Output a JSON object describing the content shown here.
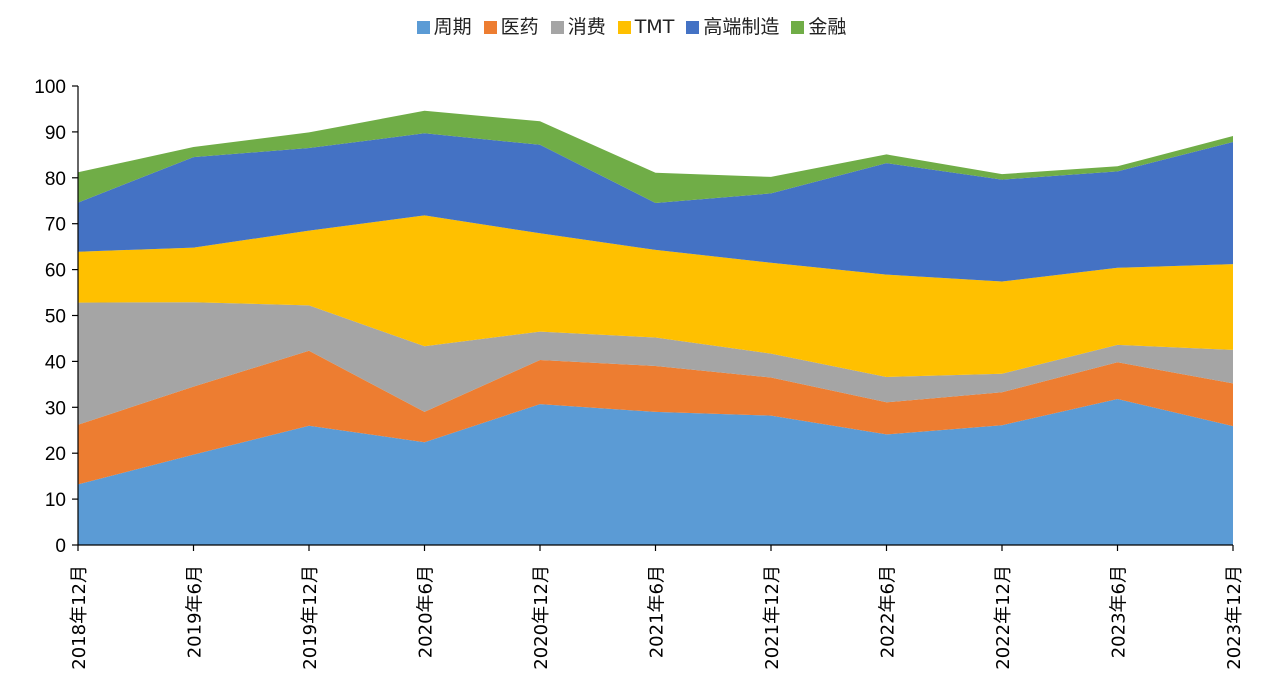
{
  "chart_data": {
    "type": "area",
    "stacked": true,
    "title": "",
    "xlabel": "",
    "ylabel": "",
    "ylim": [
      0,
      100
    ],
    "yticks": [
      0,
      10,
      20,
      30,
      40,
      50,
      60,
      70,
      80,
      90,
      100
    ],
    "grid": false,
    "legend_position": "top-center",
    "categories": [
      "2018年12月",
      "2019年6月",
      "2019年12月",
      "2020年6月",
      "2020年12月",
      "2021年6月",
      "2021年12月",
      "2022年6月",
      "2022年12月",
      "2023年6月",
      "2023年12月"
    ],
    "series": [
      {
        "name": "周期",
        "color": "#5B9BD5",
        "values": [
          13.2,
          19.7,
          26.0,
          22.4,
          30.7,
          29.0,
          28.2,
          24.1,
          26.1,
          31.8,
          25.9
        ]
      },
      {
        "name": "医药",
        "color": "#ED7D31",
        "values": [
          13.0,
          14.8,
          16.3,
          6.6,
          9.6,
          10.0,
          8.3,
          7.0,
          7.2,
          8.0,
          9.3
        ]
      },
      {
        "name": "消费",
        "color": "#A5A5A5",
        "values": [
          26.6,
          18.4,
          9.9,
          14.3,
          6.2,
          6.2,
          5.2,
          5.5,
          4.0,
          3.8,
          7.3
        ]
      },
      {
        "name": "TMT",
        "color": "#FFC000",
        "values": [
          11.1,
          11.9,
          16.3,
          28.5,
          21.4,
          19.1,
          19.8,
          22.3,
          20.1,
          16.8,
          18.7
        ]
      },
      {
        "name": "高端制造",
        "color": "#4472C4",
        "values": [
          10.7,
          19.7,
          18.0,
          17.9,
          19.3,
          10.2,
          15.1,
          24.3,
          22.2,
          21.0,
          26.6
        ]
      },
      {
        "name": "金融",
        "color": "#70AD47",
        "values": [
          6.6,
          2.2,
          3.4,
          4.9,
          5.1,
          6.6,
          3.6,
          1.9,
          1.2,
          1.1,
          1.3
        ]
      }
    ]
  }
}
